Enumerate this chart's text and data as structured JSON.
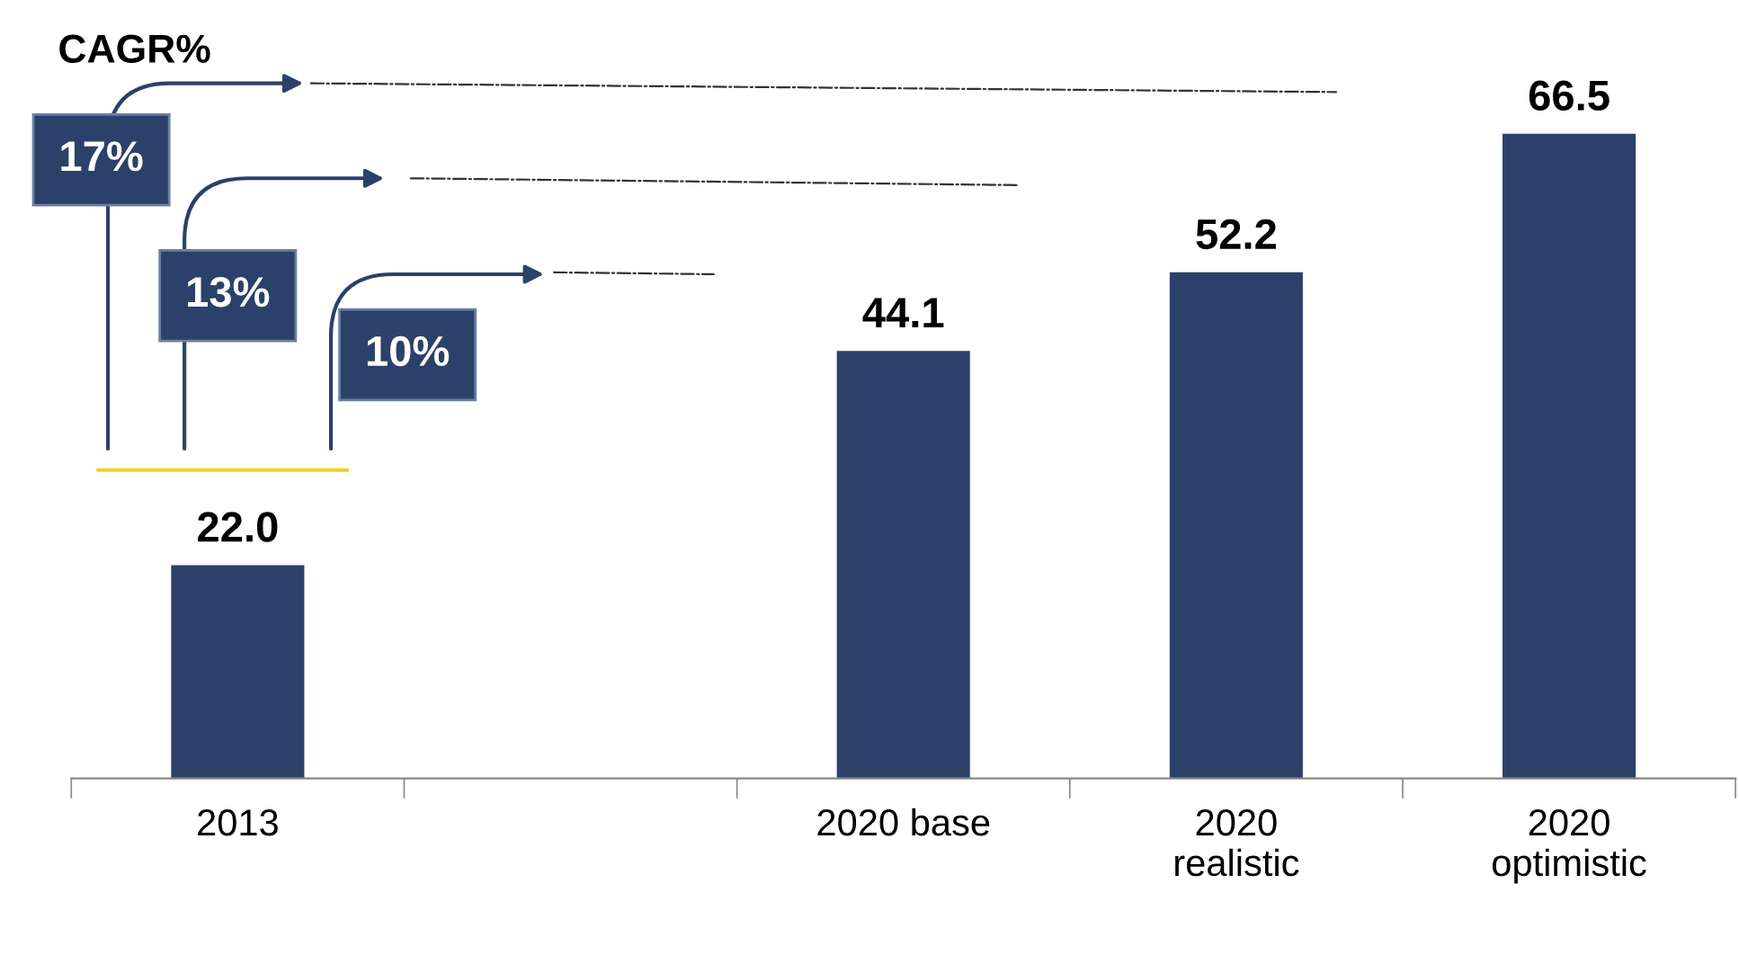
{
  "chart_data": {
    "type": "bar",
    "categories": [
      "2013",
      null,
      "2020 base",
      "2020\nrealistic",
      "2020\noptimistic"
    ],
    "values": [
      22.0,
      null,
      44.1,
      52.2,
      66.5
    ],
    "color": "#2b4169",
    "value_labels": [
      "22.0",
      null,
      "44.1",
      "52.2",
      "66.5"
    ],
    "tick_labels": "x",
    "grid": false,
    "legend": false,
    "annotations": [
      "CAGR%",
      "17%",
      "13%",
      "10%"
    ]
  }
}
